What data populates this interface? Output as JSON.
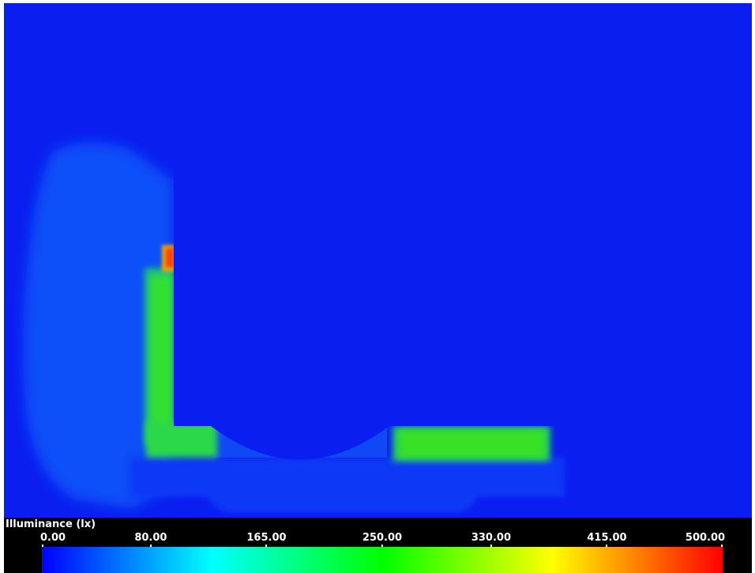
{
  "chart_data": {
    "type": "heatmap",
    "title": "Illuminance (lx)",
    "colorbar": {
      "label": "Illuminance (lx)",
      "min": 0,
      "max": 500,
      "ticks": [
        {
          "value": 0,
          "label": "0.00"
        },
        {
          "value": 80,
          "label": "80.00"
        },
        {
          "value": 165,
          "label": "165.00"
        },
        {
          "value": 250,
          "label": "250.00"
        },
        {
          "value": 330,
          "label": "330.00"
        },
        {
          "value": 415,
          "label": "415.00"
        },
        {
          "value": 500,
          "label": "500.00"
        }
      ],
      "colormap": [
        "#0000ff",
        "#00ffff",
        "#00ff00",
        "#ffff00",
        "#ff0000"
      ]
    },
    "regions": [
      {
        "name": "vertical corridor",
        "approx_lx": [
          180,
          230
        ]
      },
      {
        "name": "corridor top end hotspot",
        "approx_lx": [
          400,
          500
        ]
      },
      {
        "name": "horizontal corridor",
        "approx_lx": [
          170,
          220
        ]
      },
      {
        "name": "background",
        "approx_lx": [
          0,
          10
        ]
      }
    ]
  },
  "colors": {
    "background": "#0a1ef0",
    "legend_background": "#000000",
    "legend_text": "#ffffff"
  }
}
